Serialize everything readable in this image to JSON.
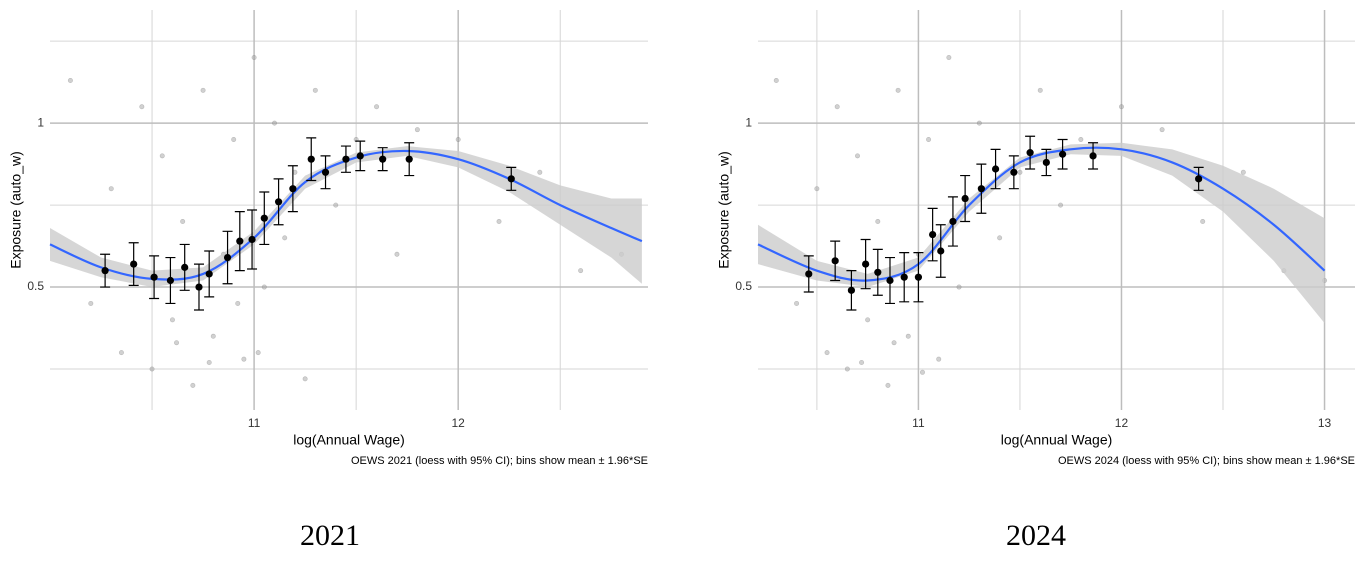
{
  "chart_data": [
    {
      "type": "scatter",
      "panel_label": "2021",
      "x_label": "log(Annual Wage)",
      "y_label": "Exposure (auto_w)",
      "caption": "OEWS 2021 (loess with 95% CI); bins show mean ± 1.96*SE",
      "xlim": [
        10.0,
        12.93
      ],
      "ylim": [
        0.125,
        1.345
      ],
      "xticks": [
        11,
        12
      ],
      "yticks": [
        0.5,
        1.0
      ],
      "x_minor_ticks": [
        10.5,
        11.5,
        12.5
      ],
      "y_minor_ticks": [
        0.25,
        0.75,
        1.25
      ],
      "grid": true,
      "points": {
        "color": "#9a9a9a",
        "x": [
          10.1,
          10.2,
          10.3,
          10.35,
          10.45,
          10.5,
          10.55,
          10.6,
          10.65,
          10.7,
          10.75,
          10.8,
          10.85,
          10.9,
          10.95,
          11.0,
          11.05,
          11.1,
          11.15,
          11.2,
          11.3,
          11.4,
          11.5,
          11.6,
          11.7,
          11.8,
          12.0,
          12.2,
          12.4,
          12.6,
          12.8,
          10.62,
          10.78,
          10.92,
          11.02,
          11.25
        ],
        "y": [
          1.13,
          0.45,
          0.8,
          0.3,
          1.05,
          0.25,
          0.9,
          0.4,
          0.7,
          0.2,
          1.1,
          0.35,
          0.6,
          0.95,
          0.28,
          1.2,
          0.5,
          1.0,
          0.65,
          0.85,
          1.1,
          0.75,
          0.95,
          1.05,
          0.6,
          0.98,
          0.95,
          0.7,
          0.85,
          0.55,
          0.6,
          0.33,
          0.27,
          0.45,
          0.3,
          0.22
        ]
      },
      "bin_means": {
        "color": "#000000",
        "x": [
          10.27,
          10.41,
          10.51,
          10.59,
          10.66,
          10.73,
          10.78,
          10.87,
          10.93,
          10.99,
          11.05,
          11.12,
          11.19,
          11.28,
          11.35,
          11.45,
          11.52,
          11.63,
          11.76,
          12.26
        ],
        "values": [
          0.55,
          0.57,
          0.53,
          0.52,
          0.56,
          0.5,
          0.54,
          0.59,
          0.64,
          0.645,
          0.71,
          0.76,
          0.8,
          0.89,
          0.85,
          0.89,
          0.9,
          0.89,
          0.89,
          0.83
        ],
        "errors": [
          0.05,
          0.065,
          0.065,
          0.07,
          0.07,
          0.07,
          0.07,
          0.08,
          0.09,
          0.09,
          0.08,
          0.07,
          0.07,
          0.065,
          0.05,
          0.04,
          0.045,
          0.035,
          0.05,
          0.035
        ]
      },
      "fit": {
        "color": "#3366ff",
        "band_color": "#cccccc",
        "x": [
          10.0,
          10.25,
          10.5,
          10.75,
          11.0,
          11.25,
          11.5,
          11.75,
          12.0,
          12.25,
          12.5,
          12.75,
          12.9
        ],
        "values": [
          0.63,
          0.56,
          0.525,
          0.54,
          0.65,
          0.82,
          0.895,
          0.915,
          0.89,
          0.83,
          0.75,
          0.68,
          0.64
        ],
        "lower": [
          0.58,
          0.53,
          0.5,
          0.52,
          0.63,
          0.8,
          0.88,
          0.9,
          0.865,
          0.79,
          0.69,
          0.59,
          0.51
        ],
        "upper": [
          0.68,
          0.59,
          0.55,
          0.56,
          0.67,
          0.84,
          0.91,
          0.93,
          0.915,
          0.87,
          0.81,
          0.77,
          0.77
        ]
      }
    },
    {
      "type": "scatter",
      "panel_label": "2024",
      "x_label": "log(Annual Wage)",
      "y_label": "Exposure (auto_w)",
      "caption": "OEWS 2024 (loess with 95% CI); bins show mean ± 1.96*SE",
      "xlim": [
        10.21,
        13.15
      ],
      "ylim": [
        0.125,
        1.345
      ],
      "xticks": [
        11,
        12,
        13
      ],
      "yticks": [
        0.5,
        1.0
      ],
      "x_minor_ticks": [
        10.5,
        11.5,
        12.5
      ],
      "y_minor_ticks": [
        0.25,
        0.75,
        1.25
      ],
      "grid": true,
      "points": {
        "color": "#9a9a9a",
        "x": [
          10.3,
          10.4,
          10.5,
          10.55,
          10.6,
          10.65,
          10.7,
          10.75,
          10.8,
          10.85,
          10.9,
          10.95,
          11.0,
          11.05,
          11.1,
          11.15,
          11.2,
          11.3,
          11.4,
          11.5,
          11.6,
          11.7,
          11.8,
          12.0,
          12.2,
          12.4,
          12.6,
          12.8,
          13.0,
          10.72,
          10.88,
          11.02
        ],
        "y": [
          1.13,
          0.45,
          0.8,
          0.3,
          1.05,
          0.25,
          0.9,
          0.4,
          0.7,
          0.2,
          1.1,
          0.35,
          0.6,
          0.95,
          0.28,
          1.2,
          0.5,
          1.0,
          0.65,
          0.85,
          1.1,
          0.75,
          0.95,
          1.05,
          0.98,
          0.7,
          0.85,
          0.55,
          0.52,
          0.27,
          0.33,
          0.24
        ]
      },
      "bin_means": {
        "color": "#000000",
        "x": [
          10.46,
          10.59,
          10.67,
          10.74,
          10.8,
          10.86,
          10.93,
          11.0,
          11.07,
          11.11,
          11.17,
          11.23,
          11.31,
          11.38,
          11.47,
          11.55,
          11.63,
          11.71,
          11.86,
          12.38
        ],
        "values": [
          0.54,
          0.58,
          0.49,
          0.57,
          0.545,
          0.52,
          0.53,
          0.53,
          0.66,
          0.61,
          0.7,
          0.77,
          0.8,
          0.86,
          0.85,
          0.91,
          0.88,
          0.905,
          0.9,
          0.83
        ],
        "errors": [
          0.055,
          0.06,
          0.06,
          0.075,
          0.07,
          0.07,
          0.075,
          0.075,
          0.08,
          0.08,
          0.075,
          0.07,
          0.075,
          0.06,
          0.05,
          0.05,
          0.04,
          0.045,
          0.04,
          0.035
        ]
      },
      "fit": {
        "color": "#3366ff",
        "band_color": "#cccccc",
        "x": [
          10.21,
          10.5,
          10.75,
          11.0,
          11.25,
          11.5,
          11.75,
          12.0,
          12.25,
          12.5,
          12.75,
          13.0
        ],
        "values": [
          0.63,
          0.55,
          0.52,
          0.57,
          0.75,
          0.88,
          0.92,
          0.92,
          0.88,
          0.8,
          0.69,
          0.55
        ],
        "lower": [
          0.57,
          0.52,
          0.5,
          0.55,
          0.73,
          0.865,
          0.905,
          0.9,
          0.84,
          0.73,
          0.58,
          0.39
        ],
        "upper": [
          0.69,
          0.58,
          0.54,
          0.59,
          0.77,
          0.895,
          0.935,
          0.94,
          0.92,
          0.87,
          0.8,
          0.71
        ]
      }
    }
  ]
}
